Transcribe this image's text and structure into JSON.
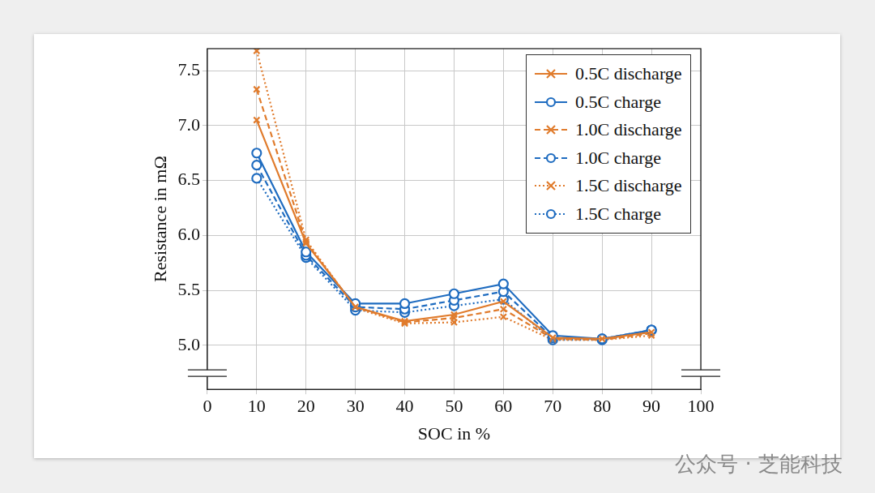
{
  "chart_data": {
    "type": "line",
    "x_label": "SOC in %",
    "y_label": "Resistance in mΩ",
    "annotations": [
      "公众号 · 芝能科技"
    ],
    "x": [
      10,
      20,
      30,
      40,
      50,
      60,
      70,
      80,
      90
    ],
    "xlim": [
      0,
      100
    ],
    "xticks": [
      0,
      10,
      20,
      30,
      40,
      50,
      60,
      70,
      80,
      90,
      100
    ],
    "ylim": [
      4.6,
      7.7
    ],
    "yticks": [
      {
        "value": 5,
        "label": "5.0"
      },
      5.5,
      {
        "value": 6,
        "label": "6.0"
      },
      6.5,
      {
        "value": 7,
        "label": "7.0"
      },
      7.5
    ],
    "grid": true,
    "legend": "upper right",
    "series": [
      {
        "name": "0.5C discharge",
        "color": "#e07b2c",
        "marker": "x",
        "line_style": "solid",
        "values": [
          7.05,
          5.93,
          5.35,
          5.22,
          5.28,
          5.4,
          5.07,
          5.06,
          5.12
        ]
      },
      {
        "name": "0.5C charge",
        "color": "#1f6cc0",
        "marker": "o",
        "line_style": "solid",
        "values": [
          6.75,
          5.85,
          5.38,
          5.38,
          5.47,
          5.56,
          5.09,
          5.06,
          5.14
        ]
      },
      {
        "name": "1.0C discharge",
        "color": "#e07b2c",
        "marker": "x",
        "line_style": "dashed",
        "values": [
          7.33,
          5.94,
          5.35,
          5.21,
          5.25,
          5.33,
          5.06,
          5.05,
          5.11
        ]
      },
      {
        "name": "1.0C charge",
        "color": "#1f6cc0",
        "marker": "o",
        "line_style": "dashed",
        "values": [
          6.64,
          5.82,
          5.35,
          5.33,
          5.41,
          5.49,
          5.07,
          5.06,
          5.14
        ]
      },
      {
        "name": "1.5C discharge",
        "color": "#e07b2c",
        "marker": "x",
        "line_style": "dotted",
        "values": [
          7.68,
          5.96,
          5.34,
          5.2,
          5.21,
          5.26,
          5.05,
          5.05,
          5.09
        ]
      },
      {
        "name": "1.5C charge",
        "color": "#1f6cc0",
        "marker": "o",
        "line_style": "dotted",
        "values": [
          6.52,
          5.8,
          5.32,
          5.3,
          5.36,
          5.42,
          5.05,
          5.05,
          5.14
        ]
      }
    ]
  }
}
